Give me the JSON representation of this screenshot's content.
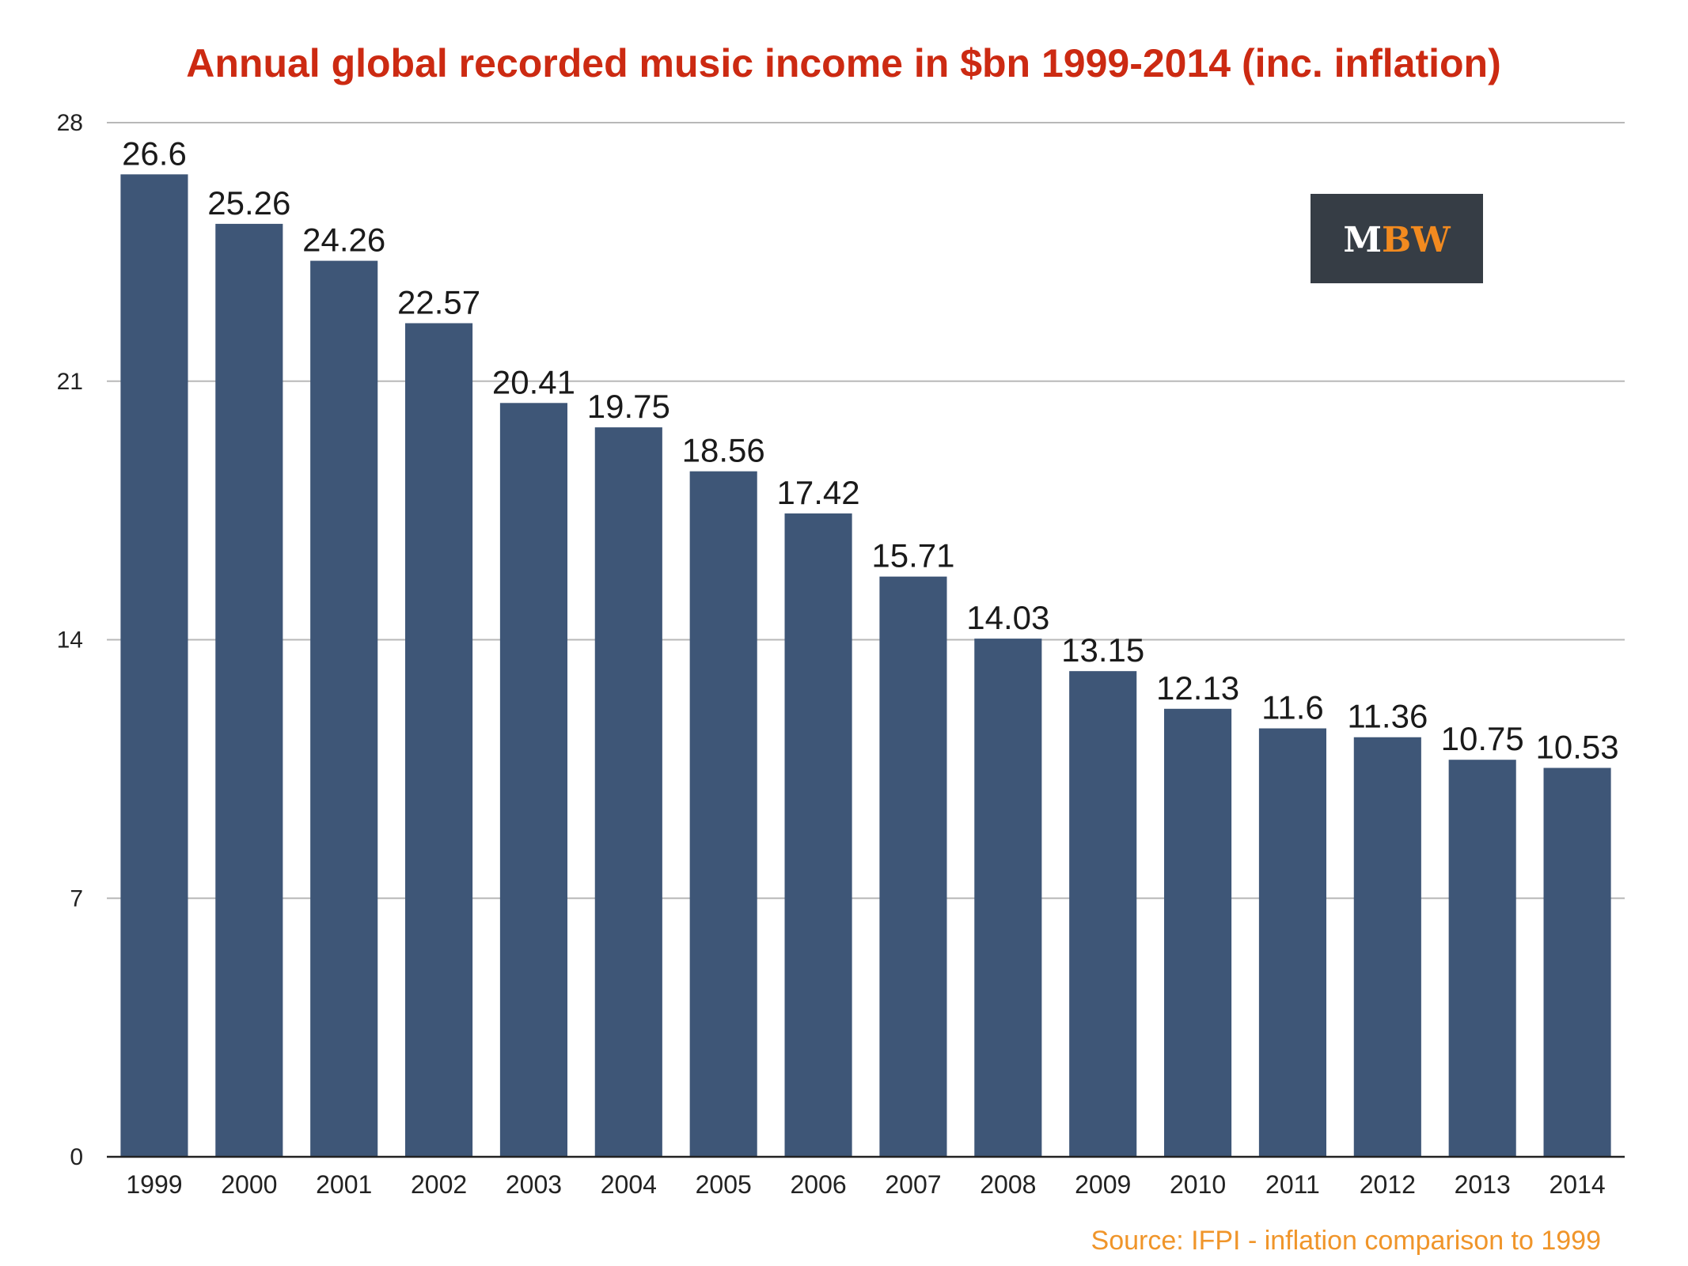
{
  "chart_data": {
    "type": "bar",
    "title": "Annual global recorded music income in $bn 1999-2014 (inc. inflation)",
    "xlabel": "",
    "ylabel": "",
    "categories": [
      "1999",
      "2000",
      "2001",
      "2002",
      "2003",
      "2004",
      "2005",
      "2006",
      "2007",
      "2008",
      "2009",
      "2010",
      "2011",
      "2012",
      "2013",
      "2014"
    ],
    "values": [
      26.6,
      25.26,
      24.26,
      22.57,
      20.41,
      19.75,
      18.56,
      17.42,
      15.71,
      14.03,
      13.15,
      12.13,
      11.6,
      11.36,
      10.75,
      10.53
    ],
    "value_labels": [
      "26.6",
      "25.26",
      "24.26",
      "22.57",
      "20.41",
      "19.75",
      "18.56",
      "17.42",
      "15.71",
      "14.03",
      "13.15",
      "12.13",
      "11.6",
      "11.36",
      "10.75",
      "10.53"
    ],
    "ylim": [
      0,
      28
    ],
    "yticks": [
      0,
      7,
      14,
      21,
      28
    ],
    "ytick_labels": [
      "0",
      "7",
      "14",
      "21",
      "28"
    ],
    "grid": true,
    "legend": "none"
  },
  "source_note": "Source: IFPI - inflation comparison to 1999",
  "logo": {
    "text_m": "M",
    "text_bw": "BW"
  },
  "colors": {
    "title": "#cc2a12",
    "bar": "#3e5677",
    "source": "#f0952a",
    "logo_bg": "#363d45",
    "logo_white": "#ffffff",
    "logo_orange": "#f28a1f",
    "grid": "#b8b8b8",
    "axis": "#222222"
  }
}
